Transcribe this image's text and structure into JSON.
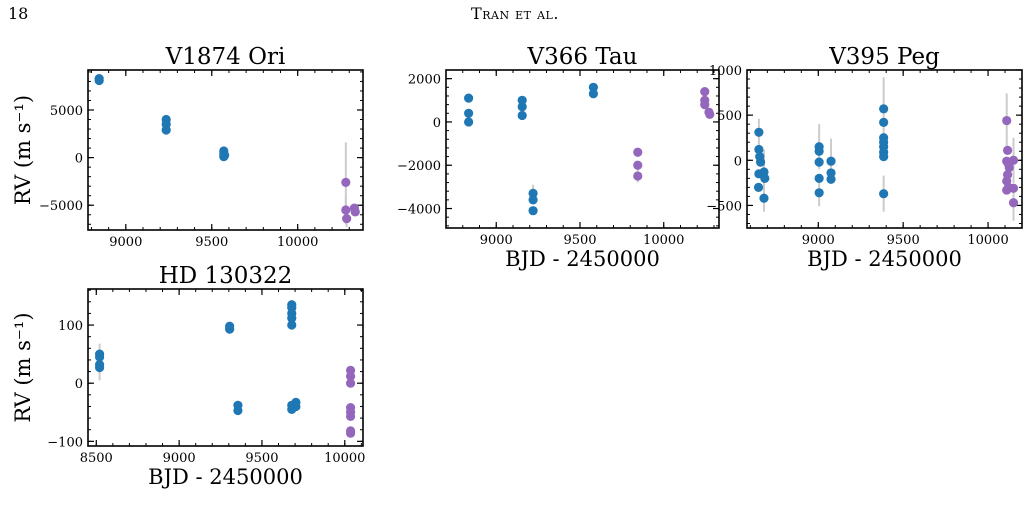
{
  "header": {
    "page_number": "18",
    "running_head": "Tran et al."
  },
  "colors": {
    "blue": "#1f77b4",
    "purple": "#9467bd",
    "errorbar": "#cccccc"
  },
  "chart_data": [
    {
      "type": "scatter",
      "title": "V1874 Ori",
      "xlabel": "",
      "ylabel": "RV (m s⁻¹)",
      "xlim": [
        8780,
        10380
      ],
      "ylim": [
        -7600,
        9200
      ],
      "xticks": [
        9000,
        9500,
        10000
      ],
      "yticks": [
        -5000,
        0,
        5000
      ],
      "xtick_labels": [
        "9000",
        "9500",
        "10000"
      ],
      "ytick_labels": [
        "−5000",
        "0",
        "5000"
      ],
      "series": [
        {
          "color": "blue",
          "points": [
            {
              "x": 8845,
              "y": 8300
            },
            {
              "x": 8845,
              "y": 8100
            },
            {
              "x": 9235,
              "y": 4000
            },
            {
              "x": 9235,
              "y": 3500
            },
            {
              "x": 9235,
              "y": 2900
            },
            {
              "x": 9570,
              "y": 700
            },
            {
              "x": 9570,
              "y": 400
            },
            {
              "x": 9570,
              "y": 100
            },
            {
              "x": 9575,
              "y": 250
            }
          ]
        },
        {
          "color": "purple",
          "points": [
            {
              "x": 10280,
              "y": -2600,
              "err": 4200
            },
            {
              "x": 10280,
              "y": -5500,
              "err": 1500
            },
            {
              "x": 10285,
              "y": -6400,
              "err": 900
            },
            {
              "x": 10330,
              "y": -5300,
              "err": 400
            },
            {
              "x": 10335,
              "y": -5700,
              "err": 400
            }
          ]
        }
      ]
    },
    {
      "type": "scatter",
      "title": "V366 Tau",
      "xlabel": "BJD - 2450000",
      "ylabel": "",
      "xlim": [
        8700,
        10330
      ],
      "ylim": [
        -4900,
        2400
      ],
      "xticks": [
        9000,
        9500,
        10000
      ],
      "yticks": [
        -4000,
        -2000,
        0,
        2000
      ],
      "xtick_labels": [
        "9000",
        "9500",
        "10000"
      ],
      "ytick_labels": [
        "−4000",
        "−2000",
        "0",
        "2000"
      ],
      "series": [
        {
          "color": "blue",
          "points": [
            {
              "x": 8835,
              "y": 1100
            },
            {
              "x": 8835,
              "y": 400
            },
            {
              "x": 8835,
              "y": 0
            },
            {
              "x": 9155,
              "y": 1000
            },
            {
              "x": 9155,
              "y": 700
            },
            {
              "x": 9155,
              "y": 300
            },
            {
              "x": 9220,
              "y": -3300,
              "err": 400
            },
            {
              "x": 9220,
              "y": -3600
            },
            {
              "x": 9220,
              "y": -4100
            },
            {
              "x": 9580,
              "y": 1600
            },
            {
              "x": 9580,
              "y": 1300
            }
          ]
        },
        {
          "color": "purple",
          "points": [
            {
              "x": 9845,
              "y": -1400
            },
            {
              "x": 9845,
              "y": -2000
            },
            {
              "x": 9845,
              "y": -2500,
              "err": 300
            },
            {
              "x": 10245,
              "y": 1400
            },
            {
              "x": 10245,
              "y": 1000
            },
            {
              "x": 10245,
              "y": 800
            },
            {
              "x": 10270,
              "y": 450
            },
            {
              "x": 10275,
              "y": 350
            }
          ]
        }
      ]
    },
    {
      "type": "scatter",
      "title": "V395 Peg",
      "xlabel": "BJD - 2450000",
      "ylabel": "",
      "xlim": [
        8580,
        10200
      ],
      "ylim": [
        -750,
        1000
      ],
      "xticks": [
        9000,
        9500,
        10000
      ],
      "yticks": [
        -500,
        0,
        500,
        1000
      ],
      "xtick_labels": [
        "9000",
        "9500",
        "10000"
      ],
      "ytick_labels": [
        "−500",
        "0",
        "500",
        "1000"
      ],
      "series": [
        {
          "color": "blue",
          "points": [
            {
              "x": 8650,
              "y": 310,
              "err": 150
            },
            {
              "x": 8650,
              "y": 120
            },
            {
              "x": 8655,
              "y": 40
            },
            {
              "x": 8660,
              "y": -20
            },
            {
              "x": 8650,
              "y": -150
            },
            {
              "x": 8648,
              "y": -300
            },
            {
              "x": 8680,
              "y": -130,
              "err": 250
            },
            {
              "x": 8685,
              "y": -200
            },
            {
              "x": 8680,
              "y": -420,
              "err": 150
            },
            {
              "x": 9005,
              "y": 150,
              "err": 250
            },
            {
              "x": 9005,
              "y": 100
            },
            {
              "x": 9005,
              "y": -20
            },
            {
              "x": 9005,
              "y": -200
            },
            {
              "x": 9005,
              "y": -360,
              "err": 150
            },
            {
              "x": 9075,
              "y": -10,
              "err": 250
            },
            {
              "x": 9075,
              "y": -140
            },
            {
              "x": 9075,
              "y": -210
            },
            {
              "x": 9385,
              "y": 570,
              "err": 350
            },
            {
              "x": 9385,
              "y": 420
            },
            {
              "x": 9385,
              "y": 250
            },
            {
              "x": 9385,
              "y": 200
            },
            {
              "x": 9385,
              "y": 150
            },
            {
              "x": 9385,
              "y": 90
            },
            {
              "x": 9385,
              "y": 40
            },
            {
              "x": 9385,
              "y": -370,
              "err": 200
            }
          ]
        },
        {
          "color": "purple",
          "points": [
            {
              "x": 10110,
              "y": 440,
              "err": 300
            },
            {
              "x": 10115,
              "y": 110
            },
            {
              "x": 10110,
              "y": -10
            },
            {
              "x": 10120,
              "y": -40
            },
            {
              "x": 10125,
              "y": -80
            },
            {
              "x": 10115,
              "y": -160
            },
            {
              "x": 10110,
              "y": -230
            },
            {
              "x": 10120,
              "y": -300
            },
            {
              "x": 10110,
              "y": -330
            },
            {
              "x": 10150,
              "y": 0,
              "err": 250
            },
            {
              "x": 10150,
              "y": -310
            },
            {
              "x": 10150,
              "y": -470,
              "err": 200
            }
          ]
        }
      ]
    },
    {
      "type": "scatter",
      "title": "HD 130322",
      "xlabel": "BJD - 2450000",
      "ylabel": "RV (m s⁻¹)",
      "xlim": [
        8450,
        10110
      ],
      "ylim": [
        -108,
        162
      ],
      "xticks": [
        8500,
        9000,
        9500,
        10000
      ],
      "yticks": [
        -100,
        0,
        100
      ],
      "xtick_labels": [
        "8500",
        "9000",
        "9500",
        "10000"
      ],
      "ytick_labels": [
        "−100",
        "0",
        "100"
      ],
      "series": [
        {
          "color": "blue",
          "points": [
            {
              "x": 8520,
              "y": 50,
              "err": 18
            },
            {
              "x": 8520,
              "y": 45
            },
            {
              "x": 8520,
              "y": 32
            },
            {
              "x": 8520,
              "y": 27,
              "err": 22
            },
            {
              "x": 9305,
              "y": 98
            },
            {
              "x": 9305,
              "y": 93
            },
            {
              "x": 9355,
              "y": -38,
              "err": 8
            },
            {
              "x": 9355,
              "y": -47
            },
            {
              "x": 9680,
              "y": 135
            },
            {
              "x": 9680,
              "y": 130
            },
            {
              "x": 9680,
              "y": 120
            },
            {
              "x": 9680,
              "y": 112
            },
            {
              "x": 9680,
              "y": 100
            },
            {
              "x": 9680,
              "y": -38
            },
            {
              "x": 9680,
              "y": -45
            },
            {
              "x": 9705,
              "y": -33
            },
            {
              "x": 9705,
              "y": -40
            }
          ]
        },
        {
          "color": "purple",
          "points": [
            {
              "x": 10035,
              "y": 22
            },
            {
              "x": 10035,
              "y": 12
            },
            {
              "x": 10035,
              "y": 0
            },
            {
              "x": 10035,
              "y": -42
            },
            {
              "x": 10035,
              "y": -50
            },
            {
              "x": 10035,
              "y": -57
            },
            {
              "x": 10035,
              "y": -82
            },
            {
              "x": 10035,
              "y": -86
            }
          ]
        }
      ]
    }
  ]
}
